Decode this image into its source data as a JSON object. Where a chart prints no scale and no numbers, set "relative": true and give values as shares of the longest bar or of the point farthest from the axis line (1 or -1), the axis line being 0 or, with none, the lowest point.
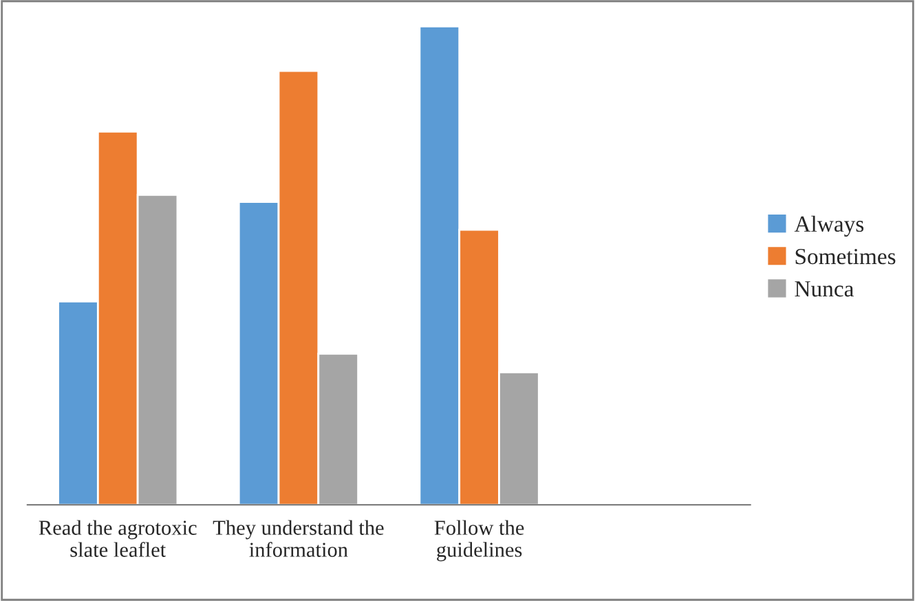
{
  "chart_data": {
    "type": "bar",
    "relative": true,
    "categories": [
      "Read the agrotoxic\nslate leaflet",
      "They understand the\ninformation",
      "Follow the\nguidelines",
      null
    ],
    "series": [
      {
        "name": "Always",
        "color": "#5b9bd5",
        "values": [
          0.425,
          0.633,
          1,
          null
        ]
      },
      {
        "name": "Sometimes",
        "color": "#ed7d31",
        "values": [
          0.78,
          0.907,
          0.575,
          null
        ]
      },
      {
        "name": "Nunca",
        "color": "#a5a5a5",
        "values": [
          0.648,
          0.316,
          0.277,
          null
        ]
      }
    ],
    "legend": "right",
    "grid": false
  }
}
